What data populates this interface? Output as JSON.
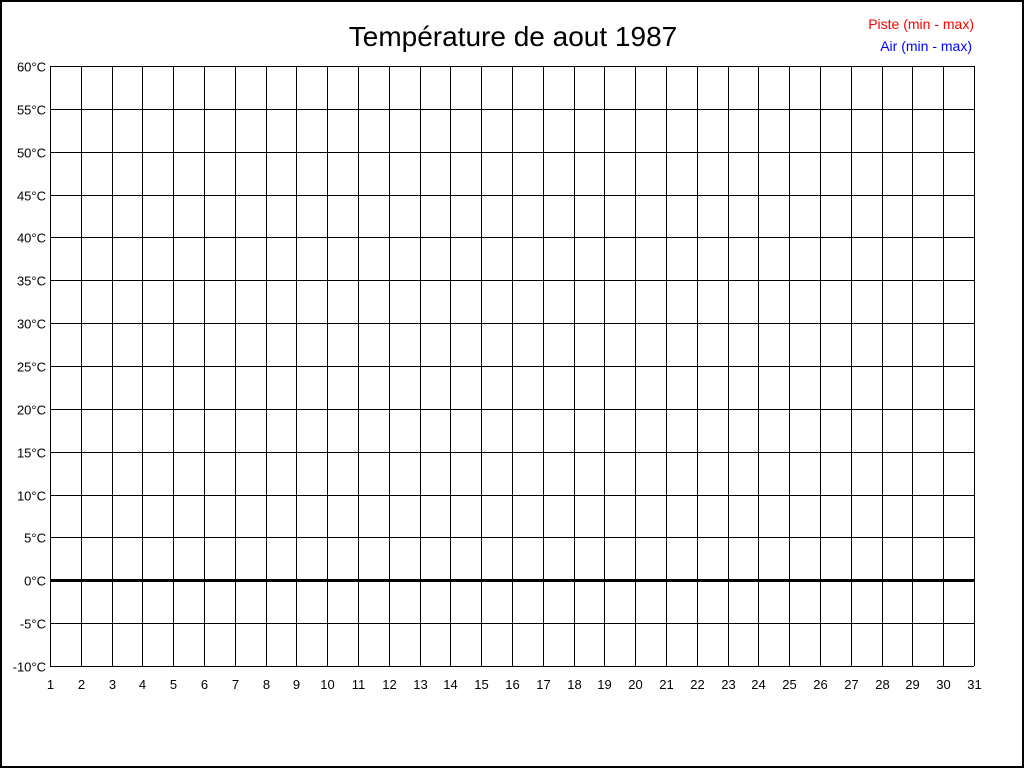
{
  "chart_data": {
    "type": "line",
    "title": "Température de aout 1987",
    "xlabel": "",
    "ylabel": "",
    "x_ticks": [
      1,
      2,
      3,
      4,
      5,
      6,
      7,
      8,
      9,
      10,
      11,
      12,
      13,
      14,
      15,
      16,
      17,
      18,
      19,
      20,
      21,
      22,
      23,
      24,
      25,
      26,
      27,
      28,
      29,
      30,
      31
    ],
    "xlim": [
      1,
      31
    ],
    "ylim": [
      -10,
      60
    ],
    "y_step": 5,
    "y_unit": "°C",
    "grid": true,
    "zero_line_emphasized": true,
    "legend_position": "top-right",
    "legend": [
      {
        "label": "Piste (min - max)",
        "color": "#ff0000"
      },
      {
        "label": "Air (min - max)",
        "color": "#0000ff"
      }
    ],
    "series": [
      {
        "name": "Piste (min - max)",
        "values": []
      },
      {
        "name": "Air (min - max)",
        "values": []
      }
    ]
  }
}
